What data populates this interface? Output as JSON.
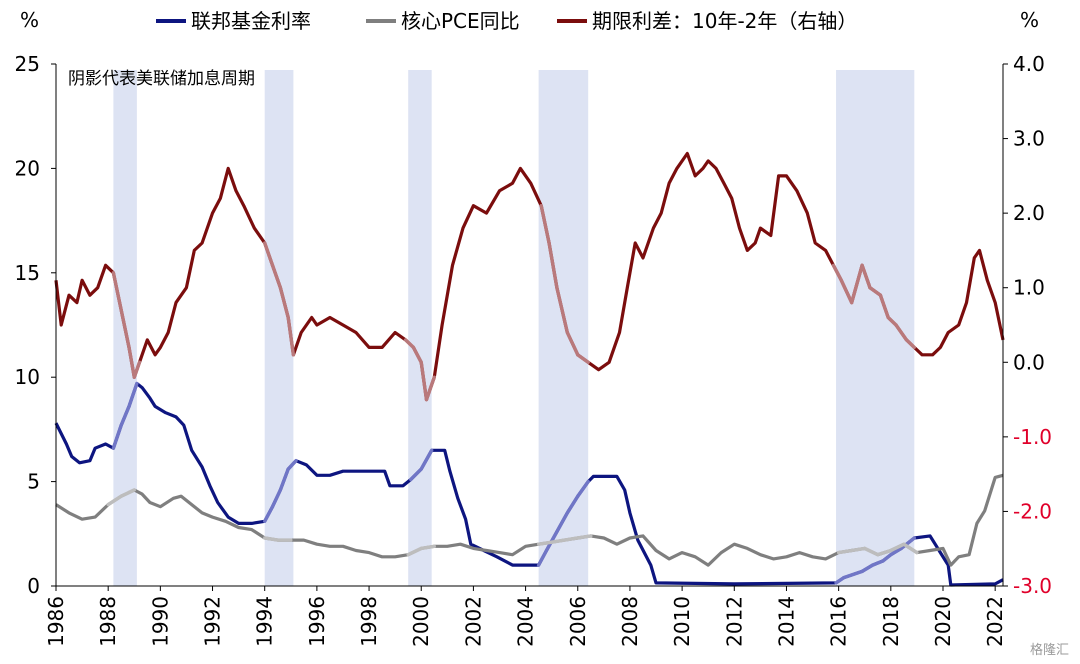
{
  "chart_data": {
    "type": "line",
    "title": "",
    "left_unit": "%",
    "right_unit": "%",
    "annotation": "阴影代表美联储加息周期",
    "x_ticks": [
      "1986",
      "1988",
      "1990",
      "1992",
      "1994",
      "1996",
      "1998",
      "2000",
      "2002",
      "2004",
      "2006",
      "2008",
      "2010",
      "2012",
      "2014",
      "2016",
      "2018",
      "2020",
      "2022"
    ],
    "y_left_ticks": [
      "0",
      "5",
      "10",
      "15",
      "20",
      "25"
    ],
    "y_right_ticks": [
      "-3.0",
      "-2.0",
      "-1.0",
      "0.0",
      "1.0",
      "2.0",
      "3.0",
      "4.0"
    ],
    "xlim": [
      1986,
      2022.3
    ],
    "ylim_left": [
      0,
      25
    ],
    "ylim_right": [
      -3.0,
      4.0
    ],
    "grid": false,
    "legend_position": "top",
    "hike_cycles": [
      [
        1988.2,
        1989.1
      ],
      [
        1994.0,
        1995.1
      ],
      [
        1999.5,
        2000.4
      ],
      [
        2004.5,
        2006.4
      ],
      [
        2015.9,
        2018.9
      ]
    ],
    "series": [
      {
        "name": "联邦基金利率",
        "axis": "left",
        "color": "#0d1580",
        "shade_color": "#7076c6",
        "points": [
          [
            1986.0,
            7.8
          ],
          [
            1986.4,
            6.8
          ],
          [
            1986.6,
            6.2
          ],
          [
            1986.9,
            5.9
          ],
          [
            1987.3,
            6.0
          ],
          [
            1987.5,
            6.6
          ],
          [
            1987.9,
            6.8
          ],
          [
            1988.2,
            6.6
          ],
          [
            1988.5,
            7.7
          ],
          [
            1988.8,
            8.6
          ],
          [
            1989.1,
            9.7
          ],
          [
            1989.3,
            9.5
          ],
          [
            1989.6,
            9.0
          ],
          [
            1989.8,
            8.6
          ],
          [
            1990.2,
            8.3
          ],
          [
            1990.6,
            8.1
          ],
          [
            1990.9,
            7.7
          ],
          [
            1991.2,
            6.5
          ],
          [
            1991.6,
            5.7
          ],
          [
            1991.9,
            4.8
          ],
          [
            1992.2,
            4.0
          ],
          [
            1992.6,
            3.3
          ],
          [
            1993.0,
            3.0
          ],
          [
            1993.5,
            3.0
          ],
          [
            1994.0,
            3.1
          ],
          [
            1994.3,
            3.8
          ],
          [
            1994.6,
            4.6
          ],
          [
            1994.9,
            5.6
          ],
          [
            1995.2,
            6.0
          ],
          [
            1995.6,
            5.8
          ],
          [
            1996.0,
            5.3
          ],
          [
            1996.5,
            5.3
          ],
          [
            1997.0,
            5.5
          ],
          [
            1997.5,
            5.5
          ],
          [
            1998.0,
            5.5
          ],
          [
            1998.6,
            5.5
          ],
          [
            1998.8,
            4.8
          ],
          [
            1999.3,
            4.8
          ],
          [
            1999.6,
            5.1
          ],
          [
            2000.0,
            5.6
          ],
          [
            2000.4,
            6.5
          ],
          [
            2000.9,
            6.5
          ],
          [
            2001.1,
            5.5
          ],
          [
            2001.4,
            4.2
          ],
          [
            2001.7,
            3.2
          ],
          [
            2001.9,
            2.0
          ],
          [
            2002.4,
            1.7
          ],
          [
            2002.9,
            1.4
          ],
          [
            2003.5,
            1.0
          ],
          [
            2004.5,
            1.0
          ],
          [
            2004.8,
            1.7
          ],
          [
            2005.2,
            2.6
          ],
          [
            2005.6,
            3.5
          ],
          [
            2006.0,
            4.3
          ],
          [
            2006.4,
            5.0
          ],
          [
            2006.6,
            5.25
          ],
          [
            2007.5,
            5.25
          ],
          [
            2007.8,
            4.6
          ],
          [
            2008.0,
            3.5
          ],
          [
            2008.3,
            2.2
          ],
          [
            2008.8,
            1.0
          ],
          [
            2009.0,
            0.15
          ],
          [
            2012.0,
            0.1
          ],
          [
            2015.9,
            0.15
          ],
          [
            2016.2,
            0.4
          ],
          [
            2016.9,
            0.7
          ],
          [
            2017.3,
            1.0
          ],
          [
            2017.7,
            1.2
          ],
          [
            2018.0,
            1.5
          ],
          [
            2018.4,
            1.8
          ],
          [
            2018.9,
            2.3
          ],
          [
            2019.5,
            2.4
          ],
          [
            2019.7,
            2.0
          ],
          [
            2019.9,
            1.6
          ],
          [
            2020.2,
            1.0
          ],
          [
            2020.3,
            0.05
          ],
          [
            2022.0,
            0.1
          ],
          [
            2022.3,
            0.3
          ]
        ]
      },
      {
        "name": "核心PCE同比",
        "axis": "left",
        "color": "#7f7f7f",
        "shade_color": "#bdbdbd",
        "points": [
          [
            1986.0,
            3.9
          ],
          [
            1986.5,
            3.5
          ],
          [
            1987.0,
            3.2
          ],
          [
            1987.5,
            3.3
          ],
          [
            1988.0,
            3.9
          ],
          [
            1988.5,
            4.3
          ],
          [
            1989.0,
            4.6
          ],
          [
            1989.3,
            4.4
          ],
          [
            1989.6,
            4.0
          ],
          [
            1990.0,
            3.8
          ],
          [
            1990.5,
            4.2
          ],
          [
            1990.8,
            4.3
          ],
          [
            1991.2,
            3.9
          ],
          [
            1991.6,
            3.5
          ],
          [
            1992.0,
            3.3
          ],
          [
            1992.5,
            3.1
          ],
          [
            1993.0,
            2.8
          ],
          [
            1993.5,
            2.7
          ],
          [
            1994.0,
            2.3
          ],
          [
            1994.5,
            2.2
          ],
          [
            1995.0,
            2.2
          ],
          [
            1995.5,
            2.2
          ],
          [
            1996.0,
            2.0
          ],
          [
            1996.5,
            1.9
          ],
          [
            1997.0,
            1.9
          ],
          [
            1997.5,
            1.7
          ],
          [
            1998.0,
            1.6
          ],
          [
            1998.5,
            1.4
          ],
          [
            1999.0,
            1.4
          ],
          [
            1999.5,
            1.5
          ],
          [
            2000.0,
            1.8
          ],
          [
            2000.5,
            1.9
          ],
          [
            2001.0,
            1.9
          ],
          [
            2001.5,
            2.0
          ],
          [
            2002.0,
            1.8
          ],
          [
            2002.5,
            1.7
          ],
          [
            2003.0,
            1.6
          ],
          [
            2003.5,
            1.5
          ],
          [
            2004.0,
            1.9
          ],
          [
            2004.5,
            2.0
          ],
          [
            2005.0,
            2.1
          ],
          [
            2005.5,
            2.2
          ],
          [
            2006.0,
            2.3
          ],
          [
            2006.5,
            2.4
          ],
          [
            2007.0,
            2.3
          ],
          [
            2007.5,
            2.0
          ],
          [
            2008.0,
            2.3
          ],
          [
            2008.5,
            2.4
          ],
          [
            2009.0,
            1.7
          ],
          [
            2009.5,
            1.3
          ],
          [
            2010.0,
            1.6
          ],
          [
            2010.5,
            1.4
          ],
          [
            2011.0,
            1.0
          ],
          [
            2011.5,
            1.6
          ],
          [
            2012.0,
            2.0
          ],
          [
            2012.5,
            1.8
          ],
          [
            2013.0,
            1.5
          ],
          [
            2013.5,
            1.3
          ],
          [
            2014.0,
            1.4
          ],
          [
            2014.5,
            1.6
          ],
          [
            2015.0,
            1.4
          ],
          [
            2015.5,
            1.3
          ],
          [
            2016.0,
            1.6
          ],
          [
            2016.5,
            1.7
          ],
          [
            2017.0,
            1.8
          ],
          [
            2017.5,
            1.5
          ],
          [
            2018.0,
            1.7
          ],
          [
            2018.5,
            2.0
          ],
          [
            2019.0,
            1.6
          ],
          [
            2019.5,
            1.7
          ],
          [
            2020.0,
            1.8
          ],
          [
            2020.3,
            1.0
          ],
          [
            2020.6,
            1.4
          ],
          [
            2021.0,
            1.5
          ],
          [
            2021.3,
            3.0
          ],
          [
            2021.6,
            3.6
          ],
          [
            2022.0,
            5.2
          ],
          [
            2022.3,
            5.3
          ]
        ]
      },
      {
        "name": "期限利差：10年-2年（右轴）",
        "axis": "right",
        "color": "#7b0d0d",
        "shade_color": "#b9797b",
        "points": [
          [
            1986.0,
            1.1
          ],
          [
            1986.2,
            0.5
          ],
          [
            1986.5,
            0.9
          ],
          [
            1986.8,
            0.8
          ],
          [
            1987.0,
            1.1
          ],
          [
            1987.3,
            0.9
          ],
          [
            1987.6,
            1.0
          ],
          [
            1987.9,
            1.3
          ],
          [
            1988.2,
            1.2
          ],
          [
            1988.5,
            0.7
          ],
          [
            1988.8,
            0.2
          ],
          [
            1989.0,
            -0.2
          ],
          [
            1989.2,
            0.0
          ],
          [
            1989.5,
            0.3
          ],
          [
            1989.8,
            0.1
          ],
          [
            1990.0,
            0.2
          ],
          [
            1990.3,
            0.4
          ],
          [
            1990.6,
            0.8
          ],
          [
            1991.0,
            1.0
          ],
          [
            1991.3,
            1.5
          ],
          [
            1991.6,
            1.6
          ],
          [
            1992.0,
            2.0
          ],
          [
            1992.3,
            2.2
          ],
          [
            1992.6,
            2.6
          ],
          [
            1992.9,
            2.3
          ],
          [
            1993.2,
            2.1
          ],
          [
            1993.6,
            1.8
          ],
          [
            1994.0,
            1.6
          ],
          [
            1994.3,
            1.3
          ],
          [
            1994.6,
            1.0
          ],
          [
            1994.9,
            0.6
          ],
          [
            1995.1,
            0.1
          ],
          [
            1995.4,
            0.4
          ],
          [
            1995.8,
            0.6
          ],
          [
            1996.0,
            0.5
          ],
          [
            1996.5,
            0.6
          ],
          [
            1997.0,
            0.5
          ],
          [
            1997.5,
            0.4
          ],
          [
            1998.0,
            0.2
          ],
          [
            1998.5,
            0.2
          ],
          [
            1999.0,
            0.4
          ],
          [
            1999.4,
            0.3
          ],
          [
            1999.7,
            0.2
          ],
          [
            2000.0,
            0.0
          ],
          [
            2000.2,
            -0.5
          ],
          [
            2000.5,
            -0.2
          ],
          [
            2000.8,
            0.5
          ],
          [
            2001.2,
            1.3
          ],
          [
            2001.6,
            1.8
          ],
          [
            2002.0,
            2.1
          ],
          [
            2002.5,
            2.0
          ],
          [
            2003.0,
            2.3
          ],
          [
            2003.5,
            2.4
          ],
          [
            2003.8,
            2.6
          ],
          [
            2004.2,
            2.4
          ],
          [
            2004.6,
            2.1
          ],
          [
            2004.9,
            1.6
          ],
          [
            2005.2,
            1.0
          ],
          [
            2005.6,
            0.4
          ],
          [
            2006.0,
            0.1
          ],
          [
            2006.4,
            0.0
          ],
          [
            2006.8,
            -0.1
          ],
          [
            2007.2,
            0.0
          ],
          [
            2007.6,
            0.4
          ],
          [
            2007.9,
            1.0
          ],
          [
            2008.2,
            1.6
          ],
          [
            2008.5,
            1.4
          ],
          [
            2008.9,
            1.8
          ],
          [
            2009.2,
            2.0
          ],
          [
            2009.5,
            2.4
          ],
          [
            2009.8,
            2.6
          ],
          [
            2010.2,
            2.8
          ],
          [
            2010.5,
            2.5
          ],
          [
            2010.8,
            2.6
          ],
          [
            2011.0,
            2.7
          ],
          [
            2011.3,
            2.6
          ],
          [
            2011.6,
            2.4
          ],
          [
            2011.9,
            2.2
          ],
          [
            2012.2,
            1.8
          ],
          [
            2012.5,
            1.5
          ],
          [
            2012.8,
            1.6
          ],
          [
            2013.0,
            1.8
          ],
          [
            2013.4,
            1.7
          ],
          [
            2013.7,
            2.5
          ],
          [
            2014.0,
            2.5
          ],
          [
            2014.4,
            2.3
          ],
          [
            2014.8,
            2.0
          ],
          [
            2015.1,
            1.6
          ],
          [
            2015.5,
            1.5
          ],
          [
            2015.8,
            1.3
          ],
          [
            2016.1,
            1.1
          ],
          [
            2016.5,
            0.8
          ],
          [
            2016.9,
            1.3
          ],
          [
            2017.2,
            1.0
          ],
          [
            2017.6,
            0.9
          ],
          [
            2017.9,
            0.6
          ],
          [
            2018.2,
            0.5
          ],
          [
            2018.6,
            0.3
          ],
          [
            2018.9,
            0.2
          ],
          [
            2019.2,
            0.1
          ],
          [
            2019.6,
            0.1
          ],
          [
            2019.9,
            0.2
          ],
          [
            2020.2,
            0.4
          ],
          [
            2020.6,
            0.5
          ],
          [
            2020.9,
            0.8
          ],
          [
            2021.2,
            1.4
          ],
          [
            2021.4,
            1.5
          ],
          [
            2021.7,
            1.1
          ],
          [
            2022.0,
            0.8
          ],
          [
            2022.3,
            0.3
          ]
        ]
      }
    ]
  },
  "watermark": "格隆汇"
}
